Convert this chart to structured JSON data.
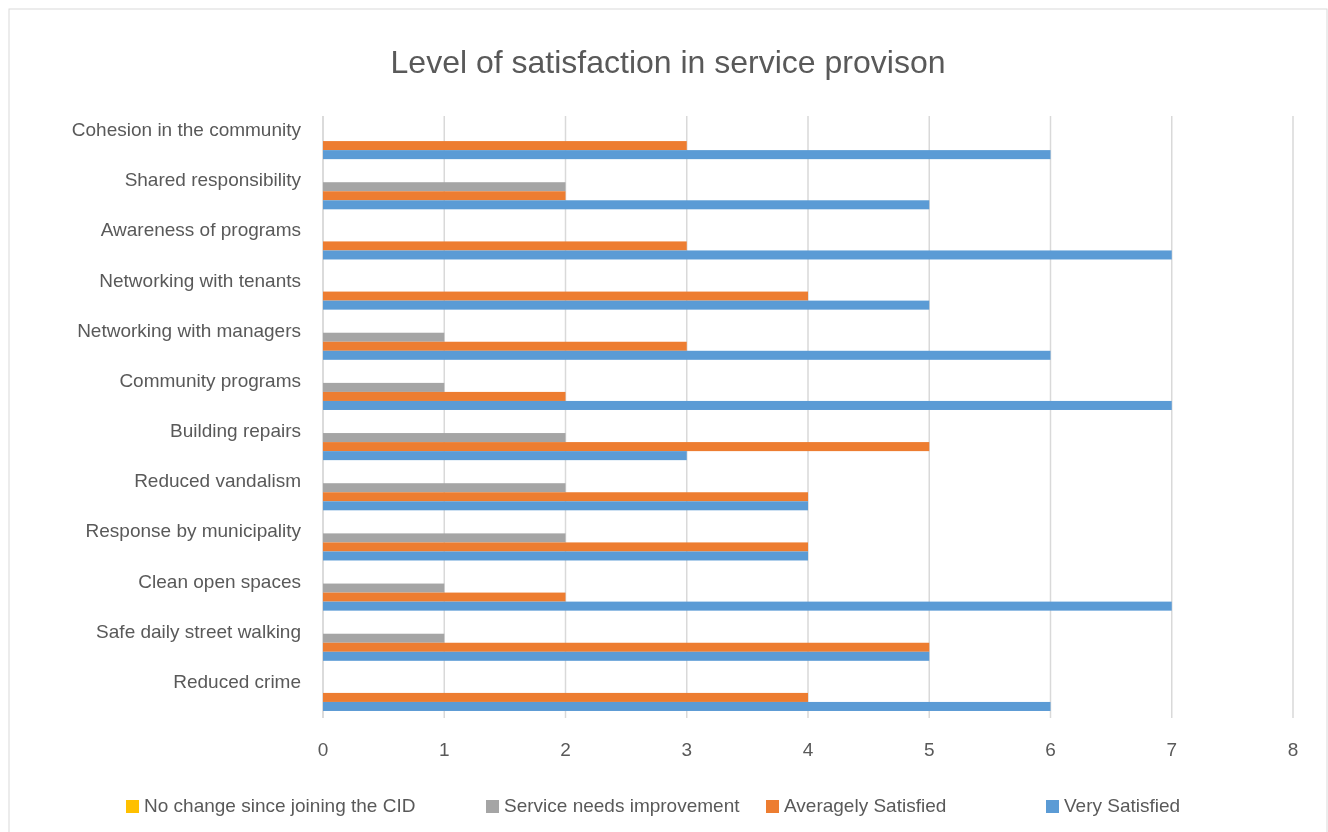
{
  "chart_data": {
    "type": "bar",
    "orientation": "horizontal",
    "title": "Level of satisfaction in service provison",
    "categories": [
      "Cohesion in the community",
      "Shared responsibility",
      "Awareness of programs",
      "Networking with tenants",
      "Networking with managers",
      "Community programs",
      "Building repairs",
      "Reduced vandalism",
      "Response by municipality",
      "Clean open spaces",
      "Safe daily street walking",
      "Reduced crime"
    ],
    "series": [
      {
        "name": "No change since joining the CID",
        "color": "#ffc000",
        "values": [
          0,
          0,
          0,
          0,
          0,
          0,
          0,
          0,
          0,
          0,
          0,
          0
        ]
      },
      {
        "name": "Service needs improvement",
        "color": "#a5a5a5",
        "values": [
          0,
          2,
          0,
          0,
          1,
          1,
          2,
          2,
          2,
          1,
          1,
          0
        ]
      },
      {
        "name": "Averagely Satisfied",
        "color": "#ed7d31",
        "values": [
          3,
          2,
          3,
          4,
          3,
          2,
          5,
          4,
          4,
          2,
          5,
          4
        ]
      },
      {
        "name": "Very Satisfied",
        "color": "#5b9bd5",
        "values": [
          6,
          5,
          7,
          5,
          6,
          7,
          3,
          4,
          4,
          7,
          5,
          6
        ]
      }
    ],
    "xlim": [
      0,
      8
    ],
    "xticks": [
      0,
      1,
      2,
      3,
      4,
      5,
      6,
      7,
      8
    ],
    "grid": "x",
    "legend": "bottom"
  }
}
